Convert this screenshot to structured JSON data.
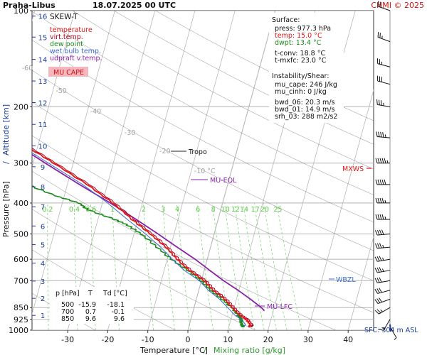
{
  "header": {
    "station": "Praha-Libus",
    "datetime": "18.07.2025 00 UTC",
    "credit": "CHMI © 2025"
  },
  "colors": {
    "temperature": "#e01515",
    "virt_temp": "#b0001e",
    "dew_point": "#1a8a1a",
    "wet_bulb": "#3a6ad0",
    "udpraft": "#8a22a8",
    "mu_cape_fill": "#f4b7bd",
    "mixing_ratio": "#7ed67a",
    "isotherm": "#b8b8b8",
    "altitude": "#1c3c9a",
    "dry_adiabat": "#2a2a2a"
  },
  "legend": {
    "title": "SKEW-T",
    "items": [
      {
        "label": "temperature",
        "color": "#e01515"
      },
      {
        "label": "virt.temp.",
        "color": "#b0001e"
      },
      {
        "label": "dew point",
        "color": "#1a8a1a"
      },
      {
        "label": "wet bulb temp.",
        "color": "#3a6ad0"
      },
      {
        "label": "udpraft v.temp.",
        "color": "#8a22a8"
      }
    ],
    "cape_label": "MU CAPE"
  },
  "surface": {
    "title": "Surface:",
    "press": "press: 977.3 hPa",
    "temp": "temp: 15.0 °C",
    "dwpt": "dwpt: 13.4 °C",
    "tconv": "t-conv: 18.8 °C",
    "tmxfc": "t-mxfc: 23.0 °C"
  },
  "instability": {
    "title": "Instability/Shear:",
    "mu_cape": "mu_cape: 246 J/kg",
    "mu_cinh": "mu_cinh: 0 J/kg",
    "bwd_06": "bwd_06: 20.3 m/s",
    "bwd_01": "bwd_01: 14.9 m/s",
    "srh_03": "srh_03: 288 m2/s2"
  },
  "levels_table": {
    "headers": [
      "p [hPa]",
      "T",
      "Td [°C]"
    ],
    "rows": [
      [
        "500",
        "-15.9",
        "-18.1"
      ],
      [
        "700",
        "0.7",
        "-0.1"
      ],
      [
        "850",
        "9.6",
        "9.6"
      ]
    ]
  },
  "markers": {
    "tropo": "Tropo",
    "mu_eql": "MU-EQL",
    "mu_lfc": "MU-LFC",
    "mxws": "MXWS",
    "wbzl": "WBZL",
    "sfc": "SFC: 304 m ASL"
  },
  "chart_data": {
    "type": "line",
    "title": "Praha-Libus 18.07.2025 00 UTC",
    "xlabel": "Temperature [°C]",
    "xlabel_secondary": "Mixing ratio [g/kg]",
    "xlabel_separator": "/",
    "ylabel": "Pressure [hPa]",
    "ylabel_secondary": "Altitude [km]",
    "ylabel_separator": "/",
    "y_scale": "log",
    "ylim": [
      1000,
      100
    ],
    "xlim": [
      -35,
      45
    ],
    "x_ticks": [
      -30,
      -20,
      -10,
      0,
      10,
      20,
      30,
      40
    ],
    "pressure_ticks": [
      100,
      200,
      300,
      400,
      500,
      600,
      700,
      850,
      925,
      1000
    ],
    "altitude_ticks": [
      {
        "km": 1,
        "p": 899
      },
      {
        "km": 2,
        "p": 795
      },
      {
        "km": 3,
        "p": 702
      },
      {
        "km": 4,
        "p": 617
      },
      {
        "km": 5,
        "p": 540
      },
      {
        "km": 6,
        "p": 472
      },
      {
        "km": 7,
        "p": 411
      },
      {
        "km": 8,
        "p": 356
      },
      {
        "km": 9,
        "p": 308
      },
      {
        "km": 10,
        "p": 265
      },
      {
        "km": 11,
        "p": 227
      },
      {
        "km": 12,
        "p": 194
      },
      {
        "km": 13,
        "p": 166
      },
      {
        "km": 14,
        "p": 142
      },
      {
        "km": 15,
        "p": 121
      },
      {
        "km": 16,
        "p": 104
      }
    ],
    "isotherm_labels": [
      {
        "t": -70,
        "label": "-70"
      },
      {
        "t": -60,
        "label": "-60"
      },
      {
        "t": -50,
        "label": "-50"
      },
      {
        "t": -40,
        "label": "-40"
      },
      {
        "t": -30,
        "label": "-30"
      },
      {
        "t": -20,
        "label": "-20"
      },
      {
        "t": -10,
        "label": "-10 °C"
      }
    ],
    "mixing_ratio_labels": [
      "0.2",
      "0.4",
      "0.6",
      "1",
      "2",
      "3",
      "4",
      "6",
      "8",
      "10",
      "12",
      "14",
      "17",
      "20",
      "25"
    ],
    "mixing_ratio_values": [
      0.2,
      0.4,
      0.6,
      1,
      2,
      3,
      4,
      6,
      8,
      10,
      12,
      14,
      17,
      20,
      25
    ],
    "series": [
      {
        "name": "temperature",
        "p": [
          977,
          960,
          925,
          900,
          850,
          800,
          750,
          700,
          650,
          600,
          550,
          500,
          450,
          400,
          350,
          300,
          265,
          240,
          200,
          170,
          150,
          125,
          100
        ],
        "t": [
          15.0,
          15.2,
          13.8,
          12.0,
          9.6,
          7.0,
          3.6,
          0.7,
          -3.8,
          -7.5,
          -11.2,
          -15.9,
          -21.5,
          -27.5,
          -35.0,
          -45.0,
          -53.0,
          -55.5,
          -57.5,
          -57.0,
          -58.0,
          -60.5,
          -62.0
        ]
      },
      {
        "name": "dew point",
        "p": [
          977,
          960,
          925,
          900,
          850,
          800,
          750,
          700,
          650,
          600,
          550,
          500,
          470,
          450,
          420,
          400,
          380,
          350,
          330,
          300,
          280,
          260,
          240,
          220,
          200,
          180,
          160,
          140,
          120,
          100
        ],
        "t": [
          13.4,
          13.1,
          12.6,
          11.5,
          9.6,
          6.2,
          3.0,
          -0.1,
          -4.2,
          -8.8,
          -13.5,
          -18.1,
          -22.0,
          -26.0,
          -33.0,
          -36.0,
          -42.0,
          -50.0,
          -53.0,
          -61.0,
          -60.0,
          -66.0,
          -70.0,
          -72.0,
          -74.0,
          -76.0,
          -77.0,
          -79.0,
          -80.0,
          -83.0
        ]
      },
      {
        "name": "udpraft v.temp.",
        "p": [
          870,
          850,
          800,
          750,
          700,
          650,
          600,
          550,
          500,
          450,
          400,
          350,
          300,
          250,
          200,
          150,
          100
        ],
        "t": [
          17.8,
          16.8,
          13.5,
          9.8,
          5.5,
          1.4,
          -3.0,
          -8.3,
          -14.0,
          -20.5,
          -28.0,
          -37.0,
          -47.0,
          -58.5,
          -72.0,
          -89.0,
          -110.0
        ]
      }
    ],
    "wind_barbs": [
      {
        "p": 975,
        "dir": 150,
        "kt": 5
      },
      {
        "p": 925,
        "dir": 210,
        "kt": 15
      },
      {
        "p": 850,
        "dir": 240,
        "kt": 25
      },
      {
        "p": 800,
        "dir": 250,
        "kt": 30
      },
      {
        "p": 750,
        "dir": 255,
        "kt": 30
      },
      {
        "p": 700,
        "dir": 260,
        "kt": 30
      },
      {
        "p": 650,
        "dir": 260,
        "kt": 35
      },
      {
        "p": 600,
        "dir": 260,
        "kt": 35
      },
      {
        "p": 550,
        "dir": 265,
        "kt": 35
      },
      {
        "p": 500,
        "dir": 265,
        "kt": 40
      },
      {
        "p": 450,
        "dir": 270,
        "kt": 45
      },
      {
        "p": 400,
        "dir": 270,
        "kt": 45
      },
      {
        "p": 350,
        "dir": 270,
        "kt": 50
      },
      {
        "p": 300,
        "dir": 270,
        "kt": 55
      },
      {
        "p": 250,
        "dir": 275,
        "kt": 45
      },
      {
        "p": 200,
        "dir": 280,
        "kt": 35
      },
      {
        "p": 170,
        "dir": 285,
        "kt": 30
      },
      {
        "p": 150,
        "dir": 285,
        "kt": 25
      },
      {
        "p": 125,
        "dir": 290,
        "kt": 25
      },
      {
        "p": 100,
        "dir": 290,
        "kt": 20
      }
    ],
    "legend_position": "top-left",
    "grid": true
  }
}
